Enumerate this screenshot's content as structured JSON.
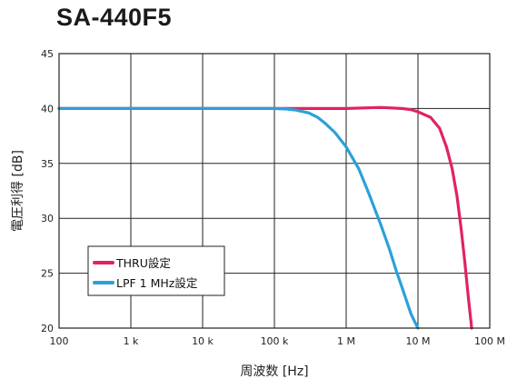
{
  "chart_data": {
    "type": "line",
    "title": "SA-440F5",
    "xlabel": "周波数 [Hz]",
    "ylabel": "電圧利得 [dB]",
    "xscale": "log",
    "xlim": [
      100,
      100000000
    ],
    "ylim": [
      20,
      45
    ],
    "grid": true,
    "legend_position": "lower-left",
    "x_ticks": [
      {
        "value": 100,
        "label": "100"
      },
      {
        "value": 1000,
        "label": "1 k"
      },
      {
        "value": 10000,
        "label": "10 k"
      },
      {
        "value": 100000,
        "label": "100 k"
      },
      {
        "value": 1000000,
        "label": "1 M"
      },
      {
        "value": 10000000,
        "label": "10 M"
      },
      {
        "value": 100000000,
        "label": "100 M"
      }
    ],
    "y_ticks": [
      {
        "value": 20,
        "label": "20"
      },
      {
        "value": 25,
        "label": "25"
      },
      {
        "value": 30,
        "label": "30"
      },
      {
        "value": 35,
        "label": "35"
      },
      {
        "value": 40,
        "label": "40"
      },
      {
        "value": 45,
        "label": "45"
      }
    ],
    "series": [
      {
        "name": "THRU設定",
        "color": "#e0245e",
        "points": [
          [
            100,
            40
          ],
          [
            1000,
            40
          ],
          [
            10000,
            40
          ],
          [
            100000,
            40
          ],
          [
            1000000,
            40
          ],
          [
            3000000,
            40.1
          ],
          [
            6000000,
            40
          ],
          [
            8000000,
            39.9
          ],
          [
            10000000,
            39.7
          ],
          [
            15000000,
            39.2
          ],
          [
            20000000,
            38.2
          ],
          [
            25000000,
            36.5
          ],
          [
            30000000,
            34.5
          ],
          [
            35000000,
            32
          ],
          [
            40000000,
            29
          ],
          [
            45000000,
            26
          ],
          [
            50000000,
            23
          ],
          [
            56000000,
            20
          ]
        ]
      },
      {
        "name": "LPF 1 MHz設定",
        "color": "#2aa1d9",
        "points": [
          [
            100,
            40
          ],
          [
            1000,
            40
          ],
          [
            10000,
            40
          ],
          [
            100000,
            40
          ],
          [
            150000,
            39.95
          ],
          [
            200000,
            39.85
          ],
          [
            300000,
            39.6
          ],
          [
            400000,
            39.2
          ],
          [
            500000,
            38.7
          ],
          [
            700000,
            37.8
          ],
          [
            1000000,
            36.5
          ],
          [
            1500000,
            34.5
          ],
          [
            2000000,
            32.5
          ],
          [
            3000000,
            29.5
          ],
          [
            4000000,
            27.2
          ],
          [
            5000000,
            25.2
          ],
          [
            6000000,
            23.7
          ],
          [
            7000000,
            22.4
          ],
          [
            8000000,
            21.3
          ],
          [
            9000000,
            20.6
          ],
          [
            10000000,
            20
          ]
        ]
      }
    ]
  }
}
